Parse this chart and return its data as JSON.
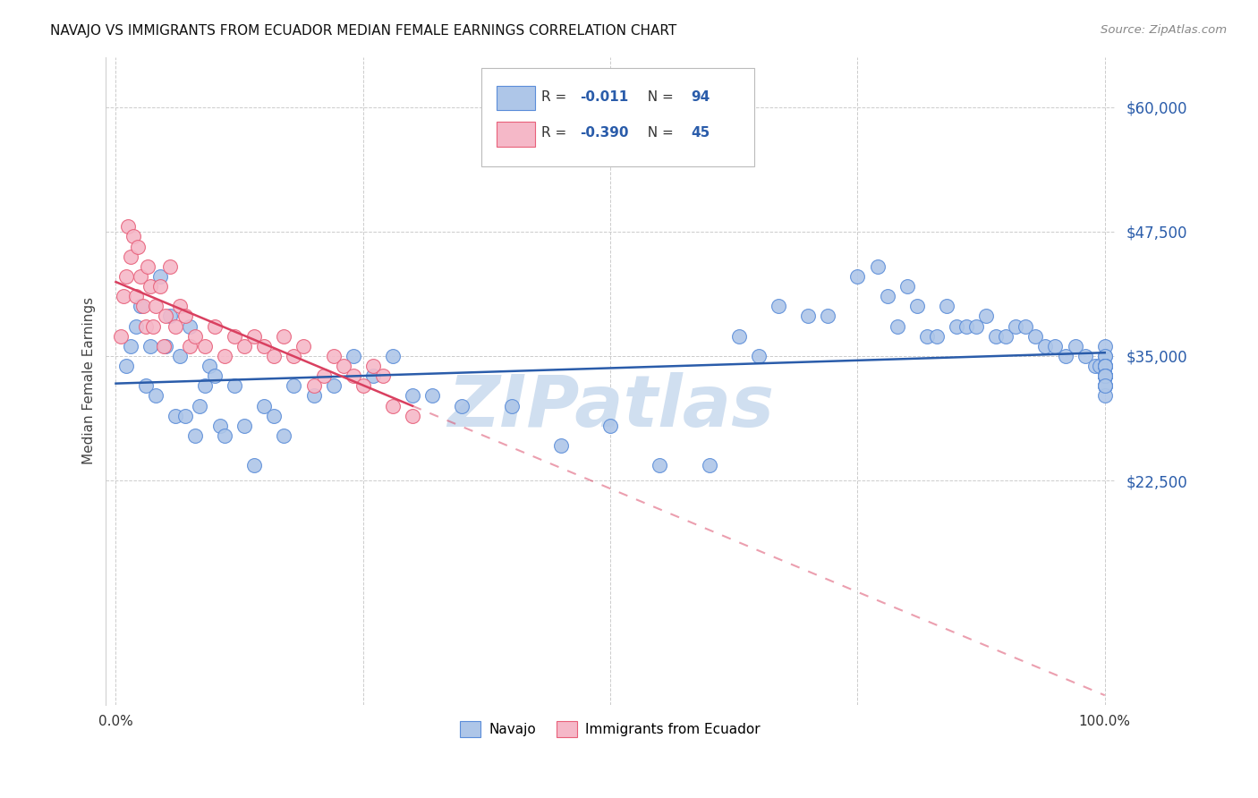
{
  "title": "NAVAJO VS IMMIGRANTS FROM ECUADOR MEDIAN FEMALE EARNINGS CORRELATION CHART",
  "source": "Source: ZipAtlas.com",
  "ylabel": "Median Female Earnings",
  "ytick_labels": [
    "",
    "$22,500",
    "$35,000",
    "$47,500",
    "$60,000"
  ],
  "ytick_values": [
    0,
    22500,
    35000,
    47500,
    60000
  ],
  "legend_labels": [
    "Navajo",
    "Immigrants from Ecuador"
  ],
  "legend_R": [
    "-0.011",
    "-0.390"
  ],
  "legend_N": [
    "94",
    "45"
  ],
  "navajo_color": "#aec6e8",
  "ecuador_color": "#f5b8c8",
  "navajo_edge": "#5b8dd9",
  "ecuador_edge": "#e8607a",
  "trend_navajo_color": "#2a5caa",
  "trend_ecuador_color": "#d94060",
  "ytick_color": "#2a5caa",
  "watermark": "ZIPatlas",
  "watermark_color": "#d0dff0",
  "background_color": "#ffffff",
  "grid_color": "#cccccc",
  "navajo_x": [
    1.0,
    1.5,
    2.0,
    2.5,
    3.0,
    3.5,
    4.0,
    4.5,
    5.0,
    5.5,
    6.0,
    6.5,
    7.0,
    7.5,
    8.0,
    8.5,
    9.0,
    9.5,
    10.0,
    10.5,
    11.0,
    12.0,
    13.0,
    14.0,
    15.0,
    16.0,
    17.0,
    18.0,
    20.0,
    22.0,
    24.0,
    26.0,
    28.0,
    30.0,
    32.0,
    35.0,
    40.0,
    45.0,
    50.0,
    55.0,
    60.0,
    63.0,
    65.0,
    67.0,
    70.0,
    72.0,
    75.0,
    77.0,
    78.0,
    79.0,
    80.0,
    81.0,
    82.0,
    83.0,
    84.0,
    85.0,
    86.0,
    87.0,
    88.0,
    89.0,
    90.0,
    91.0,
    92.0,
    93.0,
    94.0,
    95.0,
    96.0,
    97.0,
    98.0,
    99.0,
    99.5,
    100.0,
    100.0,
    100.0,
    100.0,
    100.0,
    100.0,
    100.0,
    100.0,
    100.0,
    100.0,
    100.0,
    100.0,
    100.0,
    100.0,
    100.0,
    100.0,
    100.0,
    100.0,
    100.0,
    100.0,
    100.0,
    100.0,
    100.0
  ],
  "navajo_y": [
    34000,
    36000,
    38000,
    40000,
    32000,
    36000,
    31000,
    43000,
    36000,
    39000,
    29000,
    35000,
    29000,
    38000,
    27000,
    30000,
    32000,
    34000,
    33000,
    28000,
    27000,
    32000,
    28000,
    24000,
    30000,
    29000,
    27000,
    32000,
    31000,
    32000,
    35000,
    33000,
    35000,
    31000,
    31000,
    30000,
    30000,
    26000,
    28000,
    24000,
    24000,
    37000,
    35000,
    40000,
    39000,
    39000,
    43000,
    44000,
    41000,
    38000,
    42000,
    40000,
    37000,
    37000,
    40000,
    38000,
    38000,
    38000,
    39000,
    37000,
    37000,
    38000,
    38000,
    37000,
    36000,
    36000,
    35000,
    36000,
    35000,
    34000,
    34000,
    35000,
    36000,
    35000,
    34000,
    34000,
    33000,
    33000,
    33000,
    32000,
    33000,
    34000,
    33000,
    34000,
    33000,
    33000,
    32000,
    34000,
    33000,
    32000,
    33000,
    31000,
    33000,
    32000
  ],
  "ecuador_x": [
    0.5,
    0.8,
    1.0,
    1.2,
    1.5,
    1.8,
    2.0,
    2.2,
    2.5,
    2.8,
    3.0,
    3.2,
    3.5,
    3.8,
    4.0,
    4.5,
    4.8,
    5.0,
    5.5,
    6.0,
    6.5,
    7.0,
    7.5,
    8.0,
    9.0,
    10.0,
    11.0,
    12.0,
    13.0,
    14.0,
    15.0,
    16.0,
    17.0,
    18.0,
    19.0,
    20.0,
    21.0,
    22.0,
    23.0,
    24.0,
    25.0,
    26.0,
    27.0,
    28.0,
    30.0
  ],
  "ecuador_y": [
    37000,
    41000,
    43000,
    48000,
    45000,
    47000,
    41000,
    46000,
    43000,
    40000,
    38000,
    44000,
    42000,
    38000,
    40000,
    42000,
    36000,
    39000,
    44000,
    38000,
    40000,
    39000,
    36000,
    37000,
    36000,
    38000,
    35000,
    37000,
    36000,
    37000,
    36000,
    35000,
    37000,
    35000,
    36000,
    32000,
    33000,
    35000,
    34000,
    33000,
    32000,
    34000,
    33000,
    30000,
    29000
  ]
}
